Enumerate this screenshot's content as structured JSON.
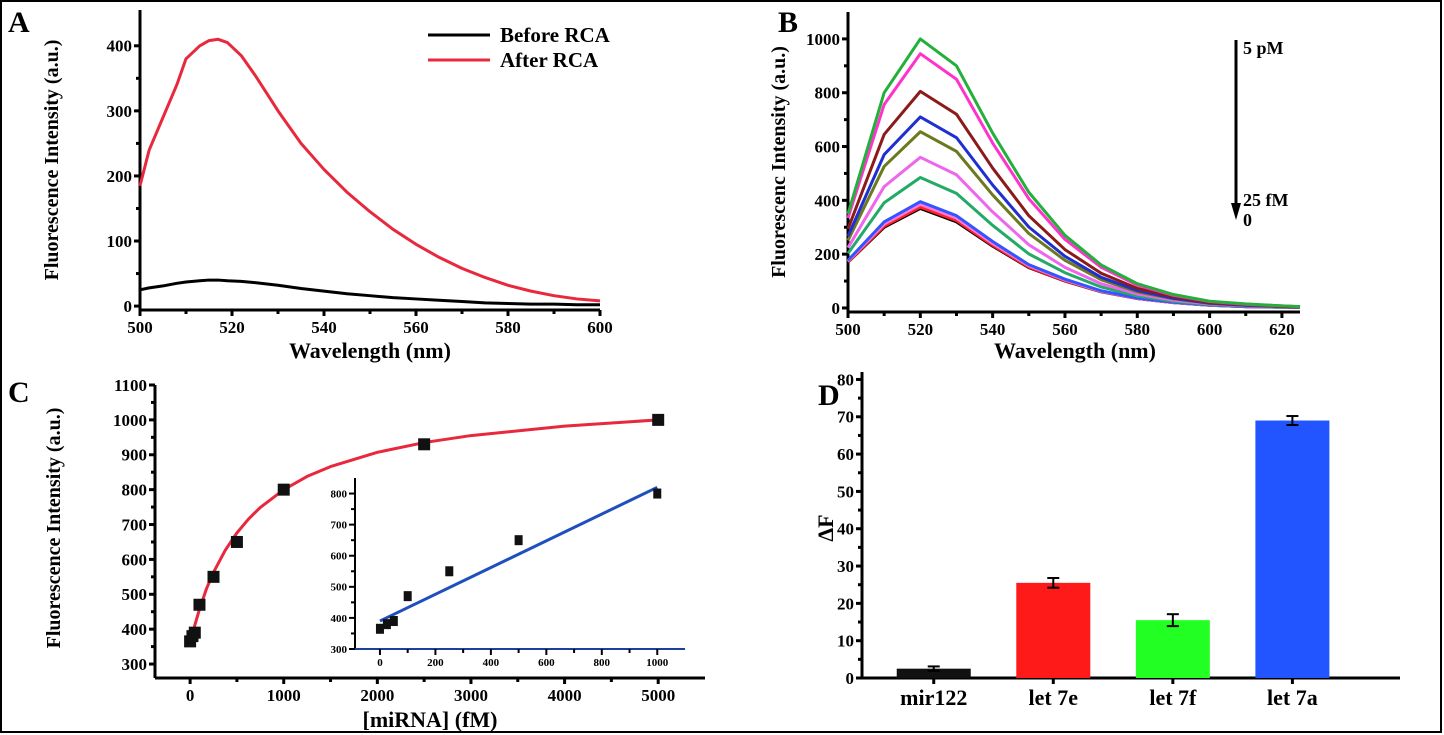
{
  "chart_data": [
    {
      "panel": "A",
      "type": "line",
      "xlabel": "Wavelength (nm)",
      "ylabel": "Fluorescence Intensity (a.u.)",
      "xlim": [
        500,
        600
      ],
      "ylim": [
        0,
        455
      ],
      "xticks": [
        500,
        520,
        540,
        560,
        580,
        600
      ],
      "yticks": [
        0,
        100,
        200,
        300,
        400
      ],
      "legend_position": "top-right",
      "x": [
        500,
        502,
        505,
        508,
        510,
        513,
        515,
        517,
        519,
        522,
        525,
        530,
        535,
        540,
        545,
        550,
        555,
        560,
        565,
        570,
        575,
        580,
        585,
        590,
        595,
        600
      ],
      "series": [
        {
          "name": "Before RCA",
          "color": "#000000",
          "values": [
            25,
            28,
            31,
            35,
            37,
            39,
            40,
            40,
            39,
            38,
            36,
            32,
            27,
            23,
            19,
            16,
            13,
            11,
            9,
            7,
            5,
            4,
            3,
            3,
            2,
            2
          ]
        },
        {
          "name": "After RCA",
          "color": "#e8283c",
          "values": [
            185,
            240,
            290,
            340,
            380,
            400,
            408,
            410,
            405,
            385,
            355,
            300,
            250,
            210,
            175,
            145,
            118,
            95,
            75,
            58,
            44,
            32,
            23,
            16,
            11,
            8
          ]
        }
      ]
    },
    {
      "panel": "B",
      "type": "line",
      "xlabel": "Wavelength (nm)",
      "ylabel": "Fluorescenc Intensity (a.u.)",
      "xlim": [
        500,
        625
      ],
      "ylim": [
        0,
        1100
      ],
      "xticks": [
        500,
        520,
        540,
        560,
        580,
        600,
        620
      ],
      "yticks": [
        0,
        200,
        400,
        600,
        800,
        1000
      ],
      "annotations": {
        "top": "5 pM",
        "low": "25 fM",
        "zero": "0"
      },
      "x": [
        500,
        510,
        520,
        530,
        540,
        550,
        560,
        570,
        580,
        590,
        600,
        610,
        620,
        625
      ],
      "series": [
        {
          "color": "#22b03a",
          "values": [
            350,
            800,
            1000,
            900,
            650,
            430,
            270,
            160,
            90,
            50,
            25,
            15,
            8,
            5
          ]
        },
        {
          "color": "#ff33cc",
          "values": [
            334,
            756,
            945,
            850,
            613,
            406,
            255,
            151,
            85,
            47,
            24,
            14,
            8,
            5
          ]
        },
        {
          "color": "#8b1a1a",
          "values": [
            294,
            645,
            805,
            720,
            520,
            343,
            217,
            129,
            73,
            41,
            20,
            12,
            6,
            4
          ]
        },
        {
          "color": "#1f2fd0",
          "values": [
            267,
            570,
            710,
            633,
            457,
            301,
            192,
            114,
            65,
            36,
            18,
            10,
            6,
            4
          ]
        },
        {
          "color": "#6b7a1e",
          "values": [
            251,
            526,
            655,
            582,
            420,
            277,
            177,
            105,
            60,
            34,
            17,
            10,
            5,
            3
          ]
        },
        {
          "color": "#ee66ee",
          "values": [
            224,
            451,
            560,
            495,
            357,
            235,
            151,
            90,
            52,
            29,
            15,
            8,
            5,
            3
          ]
        },
        {
          "color": "#22aa66",
          "values": [
            203,
            391,
            485,
            426,
            307,
            201,
            131,
            78,
            45,
            25,
            13,
            7,
            4,
            3
          ]
        },
        {
          "color": "#3355ff",
          "values": [
            177,
            320,
            395,
            343,
            247,
            161,
            107,
            64,
            37,
            21,
            11,
            5,
            3,
            2
          ]
        },
        {
          "color": "#ff77dd",
          "values": [
            174,
            312,
            385,
            334,
            240,
            157,
            104,
            62,
            36,
            20,
            10,
            5,
            3,
            2
          ]
        },
        {
          "color": "#ff2222",
          "values": [
            171,
            304,
            375,
            325,
            233,
            152,
            101,
            61,
            35,
            20,
            10,
            5,
            3,
            2
          ]
        },
        {
          "color": "#000000",
          "values": [
            170,
            300,
            370,
            320,
            230,
            150,
            100,
            60,
            35,
            20,
            10,
            5,
            3,
            2
          ]
        }
      ]
    },
    {
      "panel": "C",
      "type": "scatter",
      "xlabel": "[miRNA] (fM)",
      "ylabel": "Fluorescence Intensity (a.u.)",
      "xlim": [
        -375,
        5500
      ],
      "ylim": [
        260,
        1100
      ],
      "xticks": [
        0,
        1000,
        2000,
        3000,
        4000,
        5000
      ],
      "yticks": [
        300,
        400,
        500,
        600,
        700,
        800,
        900,
        1000,
        1100
      ],
      "points": {
        "x": [
          0,
          25,
          50,
          100,
          250,
          500,
          1000,
          2500,
          5000
        ],
        "y": [
          365,
          380,
          390,
          470,
          550,
          650,
          800,
          930,
          1000
        ],
        "err": [
          12,
          12,
          12,
          15,
          12,
          12,
          8,
          15,
          15
        ]
      },
      "fit": {
        "color": "#e8283c",
        "x": [
          0,
          50,
          100,
          175,
          250,
          375,
          500,
          625,
          750,
          1000,
          1250,
          1500,
          2000,
          2500,
          3000,
          4000,
          5000
        ],
        "y": [
          360,
          411,
          457,
          516,
          563,
          626,
          676,
          716,
          749,
          800,
          838,
          866,
          907,
          935,
          955,
          982,
          1000
        ]
      },
      "inset": {
        "xlim": [
          -90,
          1100
        ],
        "ylim": [
          300,
          850
        ],
        "xticks": [
          0,
          200,
          400,
          600,
          800,
          1000
        ],
        "yticks": [
          300,
          400,
          500,
          600,
          700,
          800
        ],
        "points": {
          "x": [
            0,
            25,
            50,
            100,
            250,
            500,
            1000
          ],
          "y": [
            365,
            380,
            390,
            470,
            550,
            650,
            800
          ]
        },
        "fit": {
          "color": "#1f4fbf",
          "x": [
            0,
            1000
          ],
          "y": [
            390,
            820
          ]
        }
      }
    },
    {
      "panel": "D",
      "type": "bar",
      "ylabel": "ΔF",
      "ylim": [
        0,
        82
      ],
      "yticks": [
        0,
        10,
        20,
        30,
        40,
        50,
        60,
        70,
        80
      ],
      "categories": [
        "mir122",
        "let 7e",
        "let 7f",
        "let 7a"
      ],
      "values": [
        2.5,
        25.5,
        15.5,
        69
      ],
      "errors": [
        0.6,
        1.3,
        1.6,
        1.2
      ],
      "colors": [
        "#111111",
        "#ff1a1a",
        "#22ff22",
        "#2255ff"
      ]
    }
  ]
}
